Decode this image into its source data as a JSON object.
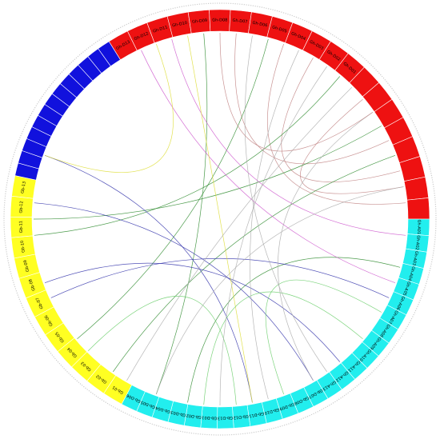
{
  "diagram": {
    "type": "circos-chord",
    "colors": {
      "red": "#ee1111",
      "cyan": "#22eeee",
      "yellow": "#ffff22",
      "blue": "#1111dd",
      "ring_outline": "#ffffff",
      "outer_ring": "#cccccc"
    },
    "groups": [
      {
        "name": "red",
        "color": "#ee1111",
        "labels": [
          "Gh-D13",
          "Gh-D12",
          "Gh-D11",
          "Gh-D10",
          "Gh-D09",
          "Gh-D08",
          "Gh-D07",
          "Gh-D06",
          "Gh-D05",
          "Gh-D04",
          "Gh-D03",
          "Gh-D02",
          "Gh-D01",
          "",
          "",
          "",
          "",
          "",
          "",
          "",
          ""
        ]
      },
      {
        "name": "cyan",
        "color": "#22eeee",
        "labels": [
          "Gh-A01",
          "Gh-A02",
          "Gh-A03",
          "Gh-A04",
          "Gh-A05",
          "Gh-A06",
          "Gh-A07",
          "Gh-A08",
          "Gh-A09",
          "Gh-A10",
          "Gh-A11",
          "Gh-A12",
          "Gh-A13",
          "Gb-D07",
          "Gb-D08",
          "Gb-D09",
          "Gb-D10",
          "Gb-D11",
          "Gb-D12",
          "Gb-D13",
          "Gb-D01",
          "Gb-D02",
          "Gb-D03",
          "Gb-D04",
          "Gb-D05",
          "Gb-D06"
        ]
      },
      {
        "name": "yellow",
        "color": "#ffff22",
        "labels": [
          "Gb-01",
          "Gb-02",
          "Gb-03",
          "Gb-04",
          "Gb-05",
          "Gb-06",
          "Gb-07",
          "Gb-08",
          "Gb-09",
          "Gb-10",
          "Gb-11",
          "Gb-12",
          "Gb-13"
        ]
      },
      {
        "name": "blue",
        "color": "#1111dd",
        "labels": [
          "",
          "",
          "",
          "",
          "",
          "",
          "",
          "",
          "",
          "",
          "",
          "",
          ""
        ]
      }
    ],
    "links": [
      {
        "color": "#c08080"
      },
      {
        "color": "#c08080"
      },
      {
        "color": "#c08080"
      },
      {
        "color": "#c08080"
      },
      {
        "color": "#2e8b2e"
      },
      {
        "color": "#2e8b2e"
      },
      {
        "color": "#2e8b2e"
      },
      {
        "color": "#2e8b2e"
      },
      {
        "color": "#2e8b2e"
      },
      {
        "color": "#2e8b2e"
      },
      {
        "color": "#3333aa"
      },
      {
        "color": "#3333aa"
      },
      {
        "color": "#3333aa"
      },
      {
        "color": "#3333aa"
      },
      {
        "color": "#cc55cc"
      },
      {
        "color": "#cc55cc"
      },
      {
        "color": "#dddd33"
      },
      {
        "color": "#dddd33"
      },
      {
        "color": "#66cc66"
      },
      {
        "color": "#66cc66"
      },
      {
        "color": "#66cc66"
      },
      {
        "color": "#aaaaaa"
      },
      {
        "color": "#aaaaaa"
      },
      {
        "color": "#aaaaaa"
      },
      {
        "color": "#aaaaaa"
      },
      {
        "color": "#aaaaaa"
      },
      {
        "color": "#aaaaaa"
      },
      {
        "color": "#c08080"
      }
    ]
  }
}
